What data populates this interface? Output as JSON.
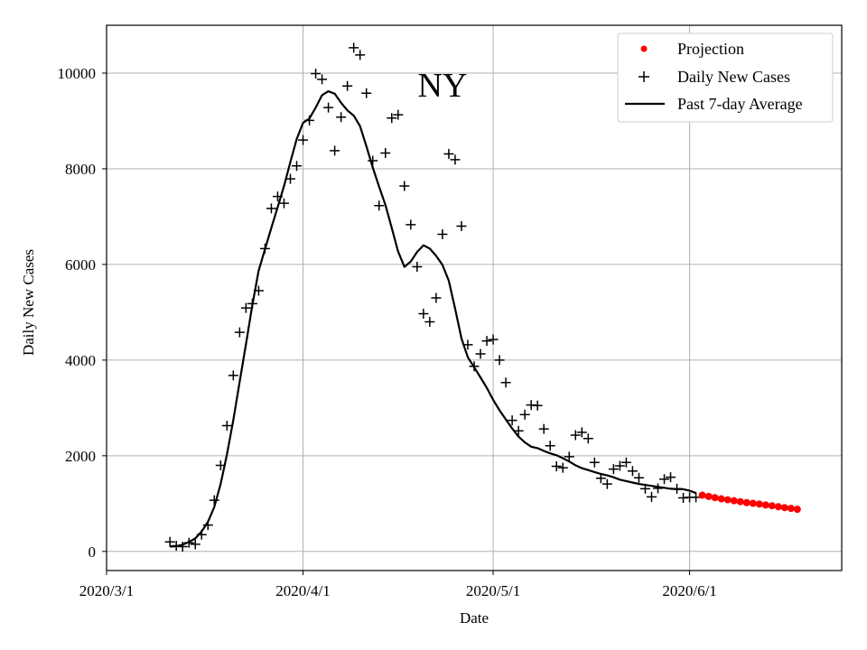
{
  "chart_data": {
    "type": "scatter",
    "annotation": "NY",
    "xlabel": "Date",
    "ylabel": "Daily New Cases",
    "x_ticks": [
      {
        "date": "2020-03-01",
        "label": "2020/3/1"
      },
      {
        "date": "2020-04-01",
        "label": "2020/4/1"
      },
      {
        "date": "2020-05-01",
        "label": "2020/5/1"
      },
      {
        "date": "2020-06-01",
        "label": "2020/6/1"
      }
    ],
    "y_ticks": [
      0,
      2000,
      4000,
      6000,
      8000,
      10000
    ],
    "xlim": [
      "2020-03-01",
      "2020-06-25"
    ],
    "ylim": [
      -400,
      11000
    ],
    "grid": true,
    "legend_position": "top-right",
    "series": [
      {
        "name": "Projection",
        "kind": "points",
        "color": "#ff0000",
        "x": [
          "2020-06-03",
          "2020-06-04",
          "2020-06-05",
          "2020-06-06",
          "2020-06-07",
          "2020-06-08",
          "2020-06-09",
          "2020-06-10",
          "2020-06-11",
          "2020-06-12",
          "2020-06-13",
          "2020-06-14",
          "2020-06-15",
          "2020-06-16",
          "2020-06-17",
          "2020-06-18"
        ],
        "y": [
          1175,
          1150,
          1125,
          1100,
          1080,
          1060,
          1040,
          1020,
          1005,
          990,
          970,
          955,
          935,
          915,
          900,
          880
        ]
      },
      {
        "name": "Daily New Cases",
        "kind": "plus",
        "color": "#000000",
        "x": [
          "2020-03-11",
          "2020-03-12",
          "2020-03-13",
          "2020-03-14",
          "2020-03-15",
          "2020-03-16",
          "2020-03-17",
          "2020-03-18",
          "2020-03-19",
          "2020-03-20",
          "2020-03-21",
          "2020-03-22",
          "2020-03-23",
          "2020-03-24",
          "2020-03-25",
          "2020-03-26",
          "2020-03-27",
          "2020-03-28",
          "2020-03-29",
          "2020-03-30",
          "2020-03-31",
          "2020-04-01",
          "2020-04-02",
          "2020-04-03",
          "2020-04-04",
          "2020-04-05",
          "2020-04-06",
          "2020-04-07",
          "2020-04-08",
          "2020-04-09",
          "2020-04-10",
          "2020-04-11",
          "2020-04-12",
          "2020-04-13",
          "2020-04-14",
          "2020-04-15",
          "2020-04-16",
          "2020-04-17",
          "2020-04-18",
          "2020-04-19",
          "2020-04-20",
          "2020-04-21",
          "2020-04-22",
          "2020-04-23",
          "2020-04-24",
          "2020-04-25",
          "2020-04-26",
          "2020-04-27",
          "2020-04-28",
          "2020-04-29",
          "2020-04-30",
          "2020-05-01",
          "2020-05-02",
          "2020-05-03",
          "2020-05-04",
          "2020-05-05",
          "2020-05-06",
          "2020-05-07",
          "2020-05-08",
          "2020-05-09",
          "2020-05-10",
          "2020-05-11",
          "2020-05-12",
          "2020-05-13",
          "2020-05-14",
          "2020-05-15",
          "2020-05-16",
          "2020-05-17",
          "2020-05-18",
          "2020-05-19",
          "2020-05-20",
          "2020-05-21",
          "2020-05-22",
          "2020-05-23",
          "2020-05-24",
          "2020-05-25",
          "2020-05-26",
          "2020-05-27",
          "2020-05-28",
          "2020-05-29",
          "2020-05-30",
          "2020-05-31",
          "2020-06-01",
          "2020-06-02"
        ],
        "y": [
          200,
          120,
          100,
          180,
          150,
          350,
          550,
          1070,
          1800,
          2630,
          3680,
          4580,
          5090,
          5180,
          5450,
          6330,
          7170,
          7420,
          7280,
          7790,
          8060,
          8600,
          9010,
          9990,
          9870,
          9280,
          8380,
          9080,
          9730,
          10530,
          10380,
          9580,
          8170,
          7230,
          8330,
          9060,
          9130,
          7640,
          6830,
          5950,
          4970,
          4800,
          5300,
          6630,
          8310,
          8190,
          6800,
          4320,
          3870,
          4130,
          4400,
          4430,
          4000,
          3530,
          2740,
          2520,
          2860,
          3060,
          3050,
          2560,
          2210,
          1780,
          1750,
          1980,
          2430,
          2490,
          2360,
          1860,
          1530,
          1410,
          1720,
          1790,
          1860,
          1680,
          1540,
          1310,
          1140,
          1320,
          1510,
          1550,
          1310,
          1120,
          1130,
          1130
        ]
      },
      {
        "name": "Past 7-day Average",
        "kind": "line",
        "color": "#000000",
        "x": [
          "2020-03-11",
          "2020-03-12",
          "2020-03-13",
          "2020-03-14",
          "2020-03-15",
          "2020-03-16",
          "2020-03-17",
          "2020-03-18",
          "2020-03-19",
          "2020-03-20",
          "2020-03-21",
          "2020-03-22",
          "2020-03-23",
          "2020-03-24",
          "2020-03-25",
          "2020-03-26",
          "2020-03-27",
          "2020-03-28",
          "2020-03-29",
          "2020-03-30",
          "2020-03-31",
          "2020-04-01",
          "2020-04-02",
          "2020-04-03",
          "2020-04-04",
          "2020-04-05",
          "2020-04-06",
          "2020-04-07",
          "2020-04-08",
          "2020-04-09",
          "2020-04-10",
          "2020-04-11",
          "2020-04-12",
          "2020-04-13",
          "2020-04-14",
          "2020-04-15",
          "2020-04-16",
          "2020-04-17",
          "2020-04-18",
          "2020-04-19",
          "2020-04-20",
          "2020-04-21",
          "2020-04-22",
          "2020-04-23",
          "2020-04-24",
          "2020-04-25",
          "2020-04-26",
          "2020-04-27",
          "2020-04-28",
          "2020-04-29",
          "2020-04-30",
          "2020-05-01",
          "2020-05-02",
          "2020-05-03",
          "2020-05-04",
          "2020-05-05",
          "2020-05-06",
          "2020-05-07",
          "2020-05-08",
          "2020-05-09",
          "2020-05-10",
          "2020-05-11",
          "2020-05-12",
          "2020-05-13",
          "2020-05-14",
          "2020-05-15",
          "2020-05-16",
          "2020-05-17",
          "2020-05-18",
          "2020-05-19",
          "2020-05-20",
          "2020-05-21",
          "2020-05-22",
          "2020-05-23",
          "2020-05-24",
          "2020-05-25",
          "2020-05-26",
          "2020-05-27",
          "2020-05-28",
          "2020-05-29",
          "2020-05-30",
          "2020-05-31",
          "2020-06-01",
          "2020-06-02"
        ],
        "y": [
          100,
          110,
          140,
          200,
          270,
          420,
          620,
          930,
          1410,
          2030,
          2740,
          3550,
          4340,
          5150,
          5870,
          6320,
          6760,
          7200,
          7640,
          8140,
          8620,
          8960,
          9050,
          9280,
          9540,
          9620,
          9570,
          9380,
          9220,
          9110,
          8890,
          8470,
          8030,
          7630,
          7240,
          6760,
          6270,
          5950,
          6060,
          6260,
          6400,
          6330,
          6180,
          5990,
          5660,
          5080,
          4450,
          4060,
          3850,
          3640,
          3420,
          3170,
          2950,
          2760,
          2570,
          2400,
          2280,
          2190,
          2160,
          2100,
          2050,
          2010,
          1950,
          1880,
          1800,
          1740,
          1700,
          1660,
          1620,
          1590,
          1550,
          1500,
          1470,
          1440,
          1410,
          1390,
          1370,
          1350,
          1330,
          1310,
          1300,
          1300,
          1270,
          1220
        ]
      }
    ]
  },
  "legend": {
    "items": [
      {
        "label": "Projection"
      },
      {
        "label": "Daily New Cases"
      },
      {
        "label": "Past 7-day Average"
      }
    ]
  }
}
